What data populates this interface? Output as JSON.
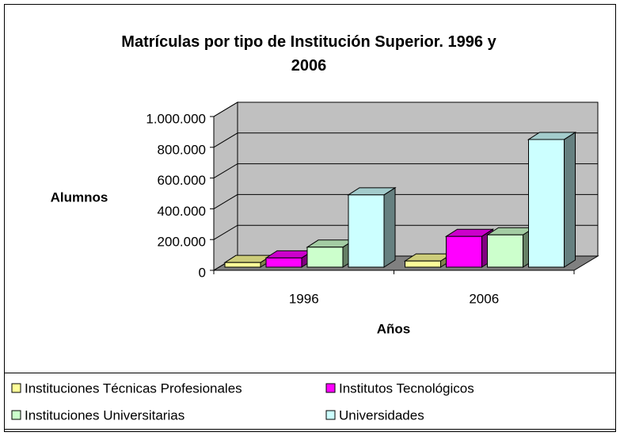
{
  "chart_data": {
    "type": "bar3d",
    "title": "Matrículas por tipo de Institución Superior. 1996 y 2006",
    "y_label": "Alumnos",
    "x_label": "Años",
    "categories": [
      "1996",
      "2006"
    ],
    "series": [
      {
        "name": "Instituciones Técnicas Profesionales",
        "color": "#ffff99",
        "values": [
          30000,
          40000
        ]
      },
      {
        "name": "Institutos Tecnológicos",
        "color": "#ff00ff",
        "values": [
          60000,
          200000
        ]
      },
      {
        "name": "Instituciones Universitarias",
        "color": "#ccffcc",
        "values": [
          130000,
          210000
        ]
      },
      {
        "name": "Universidades",
        "color": "#ccffff",
        "values": [
          470000,
          830000
        ]
      }
    ],
    "ylim": [
      0,
      1000000
    ],
    "yticks": [
      0,
      {
        "value": 200000,
        "label": "200.000"
      },
      {
        "value": 400000,
        "label": "400.000"
      },
      {
        "value": 600000,
        "label": "600.000"
      },
      {
        "value": 800000,
        "label": "800.000"
      },
      {
        "value": 1000000,
        "label": "1.000.000"
      }
    ],
    "grid": true
  }
}
